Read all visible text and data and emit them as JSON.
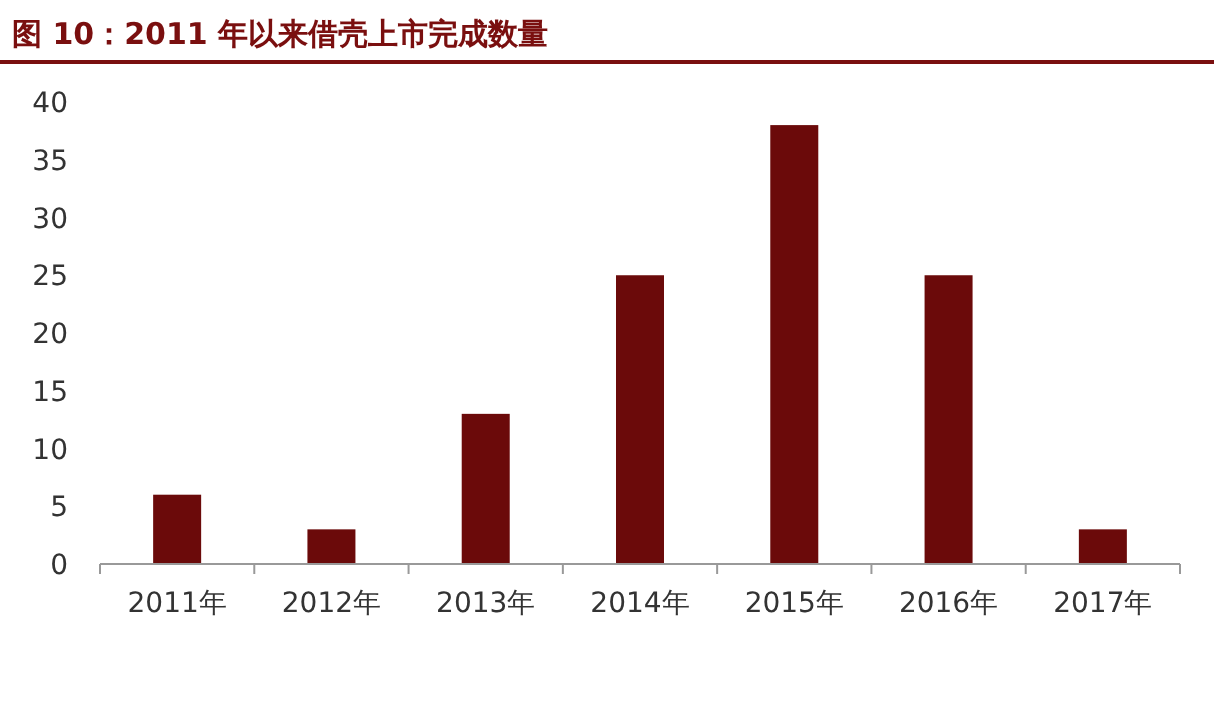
{
  "chart_data": {
    "type": "bar",
    "title": "图 10：2011 年以来借壳上市完成数量",
    "categories": [
      "2011年",
      "2012年",
      "2013年",
      "2014年",
      "2015年",
      "2016年",
      "2017年"
    ],
    "values": [
      6,
      3,
      13,
      25,
      38,
      25,
      3
    ],
    "color": "#6b0a0a",
    "ylim": [
      0,
      40
    ],
    "yticks": [
      0,
      5,
      10,
      15,
      20,
      25,
      30,
      35,
      40
    ],
    "grid": false
  }
}
